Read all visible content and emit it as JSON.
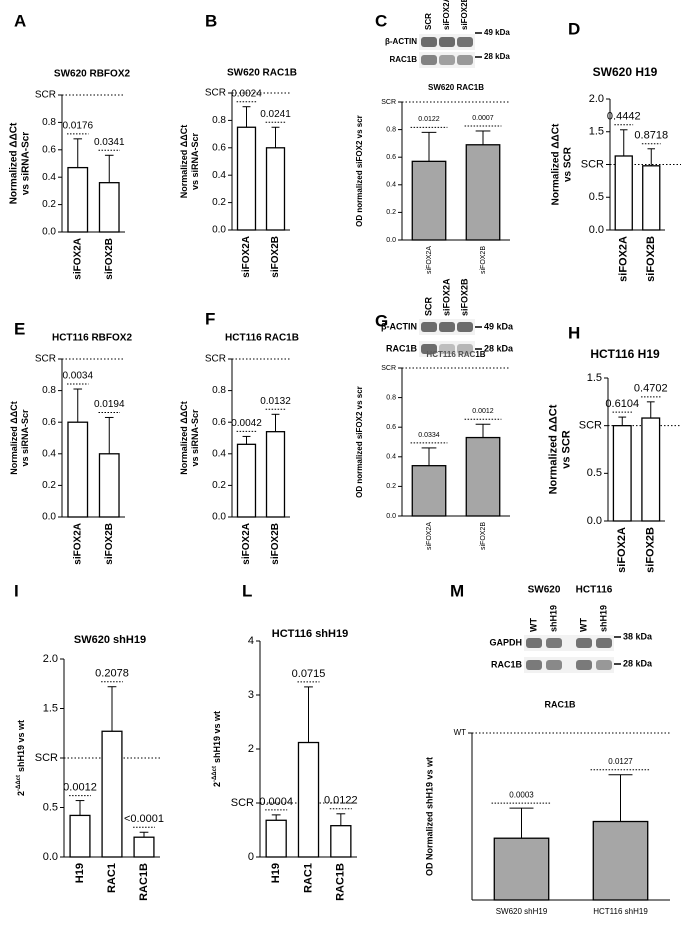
{
  "chart_data": [
    {
      "type": "bar",
      "panel": "A",
      "title": "SW620 RBFOX2",
      "ylabel": [
        "Normalized ΔΔCt",
        "vs siRNA-Scr"
      ],
      "categories": [
        "siFOX2A",
        "siFOX2B"
      ],
      "values": [
        0.47,
        0.36
      ],
      "errors": [
        0.21,
        0.2
      ],
      "annotations": [
        "0.0176",
        "0.0341"
      ],
      "ylim": [
        0,
        1
      ],
      "yticks": [
        {
          "value": 0,
          "label": "0.0"
        },
        0.2,
        0.4,
        0.6,
        0.8,
        {
          "value": 1,
          "label": "SCR"
        }
      ],
      "refline": 1,
      "color": "#ffffff"
    },
    {
      "type": "bar",
      "panel": "B",
      "title": "SW620 RAC1B",
      "ylabel": [
        "Normalized ΔΔCt",
        "vs siRNA-Scr"
      ],
      "categories": [
        "siFOX2A",
        "siFOX2B"
      ],
      "values": [
        0.75,
        0.6
      ],
      "errors": [
        0.15,
        0.15
      ],
      "annotations": [
        "0.0024",
        "0.0241"
      ],
      "ylim": [
        0,
        1
      ],
      "yticks": [
        {
          "value": 0,
          "label": "0.0"
        },
        0.2,
        0.4,
        0.6,
        0.8,
        {
          "value": 1,
          "label": "SCR"
        }
      ],
      "refline": 1,
      "color": "#ffffff"
    },
    {
      "type": "bar",
      "panel": "C",
      "title": "SW620 RAC1B",
      "ylabel": [
        "OD normalized siFOX2 vs scr"
      ],
      "categories": [
        "siFOX2A",
        "siFOX2B"
      ],
      "values": [
        0.57,
        0.69
      ],
      "errors": [
        0.21,
        0.1
      ],
      "annotations": [
        "0.0122",
        "0.0007"
      ],
      "ylim": [
        0,
        1
      ],
      "yticks": [
        {
          "value": 0,
          "label": "0.0"
        },
        0.2,
        0.4,
        0.6,
        0.8,
        {
          "value": 1,
          "label": "SCR"
        }
      ],
      "refline": 1,
      "color": "#a6a6a6"
    },
    {
      "type": "bar",
      "panel": "D",
      "title": "SW620  H19",
      "ylabel": [
        "Normalized ΔΔCt",
        "vs SCR"
      ],
      "categories": [
        "siFOX2A",
        "siFOX2B"
      ],
      "values": [
        1.13,
        0.98
      ],
      "errors": [
        0.4,
        0.26
      ],
      "annotations": [
        "0.4442",
        "0.8718"
      ],
      "ylim": [
        0,
        2
      ],
      "yticks": [
        {
          "value": 0,
          "label": "0.0"
        },
        0.5,
        {
          "value": 1,
          "label": "SCR"
        },
        1.5,
        {
          "value": 2,
          "label": "2.0"
        }
      ],
      "refline": 1,
      "color": "#ffffff"
    },
    {
      "type": "bar",
      "panel": "E",
      "title": "HCT116 RBFOX2",
      "ylabel": [
        "Normalized ΔΔCt",
        "vs siRNA-Scr"
      ],
      "categories": [
        "siFOX2A",
        "siFOX2B"
      ],
      "values": [
        0.6,
        0.4
      ],
      "errors": [
        0.21,
        0.23
      ],
      "annotations": [
        "0.0034",
        "0.0194"
      ],
      "ylim": [
        0,
        1
      ],
      "yticks": [
        {
          "value": 0,
          "label": "0.0"
        },
        0.2,
        0.4,
        0.6,
        0.8,
        {
          "value": 1,
          "label": "SCR"
        }
      ],
      "refline": 1,
      "color": "#ffffff"
    },
    {
      "type": "bar",
      "panel": "F",
      "title": "HCT116 RAC1B",
      "ylabel": [
        "Normalized ΔΔCt",
        "vs siRNA-Scr"
      ],
      "categories": [
        "siFOX2A",
        "siFOX2B"
      ],
      "values": [
        0.46,
        0.54
      ],
      "errors": [
        0.05,
        0.11
      ],
      "annotations": [
        "0.0042",
        "0.0132"
      ],
      "ylim": [
        0,
        1
      ],
      "yticks": [
        {
          "value": 0,
          "label": "0.0"
        },
        0.2,
        0.4,
        0.6,
        0.8,
        {
          "value": 1,
          "label": "SCR"
        }
      ],
      "refline": 1,
      "color": "#ffffff"
    },
    {
      "type": "bar",
      "panel": "G",
      "title": "HCT116 RAC1B",
      "ylabel": [
        "OD normalized siFOX2 vs scr"
      ],
      "categories": [
        "siFOX2A",
        "siFOX2B"
      ],
      "values": [
        0.34,
        0.53
      ],
      "errors": [
        0.12,
        0.09
      ],
      "annotations": [
        "0.0334",
        "0.0012"
      ],
      "ylim": [
        0,
        1
      ],
      "yticks": [
        {
          "value": 0,
          "label": "0.0"
        },
        0.2,
        0.4,
        0.6,
        0.8,
        {
          "value": 1,
          "label": "SCR"
        }
      ],
      "refline": 1,
      "color": "#a6a6a6"
    },
    {
      "type": "bar",
      "panel": "H",
      "title": "HCT116  H19",
      "ylabel": [
        "Normalized ΔΔCt",
        "vs SCR"
      ],
      "categories": [
        "siFOX2A",
        "siFOX2B"
      ],
      "values": [
        1.0,
        1.08
      ],
      "errors": [
        0.09,
        0.17
      ],
      "annotations": [
        "0.6104",
        "0.4702"
      ],
      "ylim": [
        0,
        1.5
      ],
      "yticks": [
        {
          "value": 0,
          "label": "0.0"
        },
        0.5,
        {
          "value": 1,
          "label": "SCR"
        },
        1.5
      ],
      "refline": 1,
      "color": "#ffffff"
    },
    {
      "type": "bar",
      "panel": "I",
      "title": "SW620 shH19",
      "ylabel": {
        "base": "2",
        "sup": "-ΔΔct",
        "text": "shH19 vs wt"
      },
      "categories": [
        "H19",
        "RAC1",
        "RAC1B"
      ],
      "values": [
        0.42,
        1.27,
        0.2
      ],
      "errors": [
        0.15,
        0.45,
        0.05
      ],
      "annotations": [
        "0.0012",
        "0.2078",
        "<0.0001"
      ],
      "ylim": [
        0,
        2
      ],
      "yticks": [
        {
          "value": 0,
          "label": "0.0"
        },
        0.5,
        {
          "value": 1,
          "label": "SCR"
        },
        1.5,
        {
          "value": 2,
          "label": "2.0"
        }
      ],
      "refline": 1,
      "color": "#ffffff"
    },
    {
      "type": "bar",
      "panel": "L",
      "title": "HCT116 shH19",
      "ylabel": {
        "base": "2",
        "sup": "-ΔΔct",
        "text": "shH19 vs wt"
      },
      "categories": [
        "H19",
        "RAC1",
        "RAC1B"
      ],
      "values": [
        0.68,
        2.12,
        0.58
      ],
      "errors": [
        0.1,
        1.03,
        0.22
      ],
      "annotations": [
        "0.0004",
        "0.0715",
        "0.0122"
      ],
      "ylim": [
        0,
        4
      ],
      "yticks": [
        0,
        {
          "value": 1,
          "label": "SCR"
        },
        2,
        3,
        4
      ],
      "refline": 1,
      "color": "#ffffff"
    },
    {
      "type": "bar",
      "panel": "M",
      "title": "RAC1B",
      "ylabel": [
        "OD Normalized shH19 vs wt"
      ],
      "categories": [
        "SW620 shH19",
        "HCT116 shH19"
      ],
      "values": [
        0.37,
        0.47
      ],
      "errors": [
        0.18,
        0.28
      ],
      "annotations": [
        "0.0003",
        "0.0127"
      ],
      "ylim": [
        0,
        1
      ],
      "yticks": [
        {
          "value": 1,
          "label": "WT"
        }
      ],
      "refline": 1,
      "color": "#a6a6a6"
    }
  ],
  "blots": [
    {
      "lanes": [
        "SCR",
        "siFOX2A",
        "siFOX2B"
      ],
      "rows": [
        "β-ACTIN",
        "RAC1B"
      ],
      "markers": [
        "49 kDa",
        "28 kDa"
      ]
    },
    {
      "lanes": [
        "SCR",
        "siFOX2A",
        "siFOX2B"
      ],
      "rows": [
        "β-ACTIN",
        "RAC1B"
      ],
      "markers": [
        "49 kDa",
        "28 kDa"
      ]
    },
    {
      "groups": [
        "SW620",
        "HCT116"
      ],
      "lanes": [
        "WT",
        "shH19",
        "WT",
        "shH19"
      ],
      "rows": [
        "GAPDH",
        "RAC1B"
      ],
      "markers": [
        "38 kDa",
        "28 kDa"
      ]
    }
  ]
}
